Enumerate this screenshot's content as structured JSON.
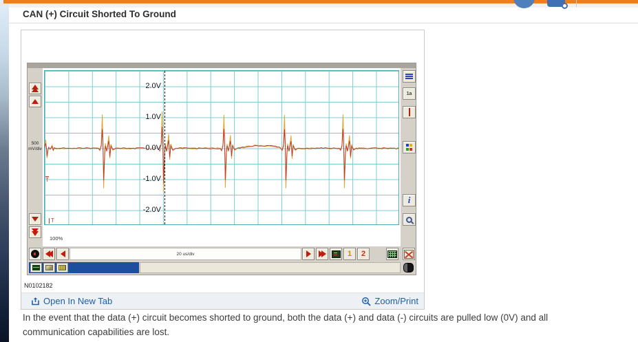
{
  "header": {
    "title": "CAN (+) Circuit Shorted To Ground"
  },
  "figure": {
    "id_label": "N0102182",
    "open_in_new_tab": "Open In New Tab",
    "zoom_print": "Zoom/Print"
  },
  "body": {
    "text": "In the event that the data (+) circuit becomes shorted to ground, both the data (+) and data (-) circuits are pulled low (0V) and all communication capabilities are lost."
  },
  "scope": {
    "voltage_labels": [
      "2.0V",
      "1.0V",
      "0.0V",
      "-1.0V",
      "-2.0V"
    ],
    "vertical_scale": "500 mV/div",
    "timebase": "20 us/div",
    "zoom_percent": "100%",
    "channel_1": "1",
    "channel_2": "2",
    "trigger_level_marker": "T",
    "trigger_time_marker": "T",
    "icons": {
      "cursor_1a": "1a",
      "info": "i"
    },
    "waveform": {
      "volts_per_div": 0.5,
      "grid_divisions": {
        "cols": 15,
        "rows": 10
      },
      "baseline_v": 0.0,
      "peak_v": 1.1,
      "trough_v": -1.3,
      "trigger_position_div": 5.09,
      "spikes": [
        {
          "pos_div": 0.17,
          "scale": 0.25
        },
        {
          "pos_div": 2.56,
          "scale": 1.0
        },
        {
          "pos_div": 5.09,
          "scale": 1.1
        },
        {
          "pos_div": 7.7,
          "scale": 1.0
        },
        {
          "pos_div": 10.26,
          "scale": 1.0
        },
        {
          "pos_div": 12.73,
          "scale": 1.0
        }
      ],
      "trace_colors": [
        "#dca62e",
        "#c0392a"
      ]
    }
  }
}
